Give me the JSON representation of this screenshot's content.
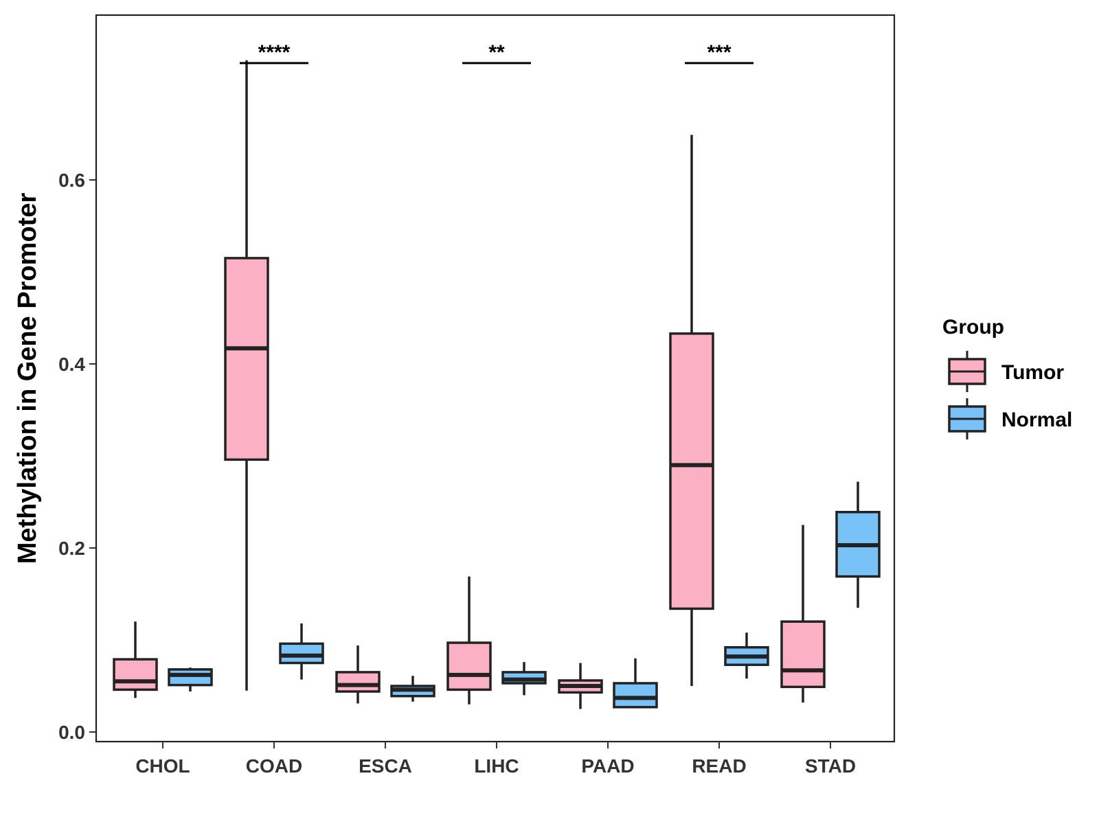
{
  "chart_data": {
    "type": "boxplot",
    "title": "",
    "xlabel": "",
    "ylabel": "Methylation in Gene Promoter",
    "ylim": [
      -0.01,
      0.785
    ],
    "yticks": [
      0.0,
      0.2,
      0.4,
      0.6
    ],
    "ytick_labels": [
      "0.0",
      "0.2",
      "0.4",
      "0.6"
    ],
    "grid": false,
    "categories": [
      "CHOL",
      "COAD",
      "ESCA",
      "LIHC",
      "PAAD",
      "READ",
      "STAD"
    ],
    "legend": {
      "title": "Group",
      "position": "right",
      "items": [
        {
          "name": "Tumor",
          "color": "#FBB0C3"
        },
        {
          "name": "Normal",
          "color": "#78C2F7"
        }
      ]
    },
    "series": [
      {
        "name": "Tumor",
        "color": "#FBB0C3",
        "boxes": [
          {
            "category": "CHOL",
            "min": 0.037,
            "q1": 0.046,
            "median": 0.055,
            "q3": 0.079,
            "max": 0.12
          },
          {
            "category": "COAD",
            "min": 0.045,
            "q1": 0.296,
            "median": 0.417,
            "q3": 0.515,
            "max": 0.73
          },
          {
            "category": "ESCA",
            "min": 0.031,
            "q1": 0.044,
            "median": 0.051,
            "q3": 0.065,
            "max": 0.094
          },
          {
            "category": "LIHC",
            "min": 0.03,
            "q1": 0.046,
            "median": 0.062,
            "q3": 0.097,
            "max": 0.169
          },
          {
            "category": "PAAD",
            "min": 0.025,
            "q1": 0.043,
            "median": 0.05,
            "q3": 0.056,
            "max": 0.075
          },
          {
            "category": "READ",
            "min": 0.05,
            "q1": 0.134,
            "median": 0.29,
            "q3": 0.433,
            "max": 0.649
          },
          {
            "category": "STAD",
            "min": 0.032,
            "q1": 0.049,
            "median": 0.067,
            "q3": 0.12,
            "max": 0.225
          }
        ]
      },
      {
        "name": "Normal",
        "color": "#78C2F7",
        "boxes": [
          {
            "category": "CHOL",
            "min": 0.044,
            "q1": 0.051,
            "median": 0.062,
            "q3": 0.068,
            "max": 0.07
          },
          {
            "category": "COAD",
            "min": 0.057,
            "q1": 0.075,
            "median": 0.083,
            "q3": 0.096,
            "max": 0.118
          },
          {
            "category": "ESCA",
            "min": 0.033,
            "q1": 0.039,
            "median": 0.046,
            "q3": 0.05,
            "max": 0.061
          },
          {
            "category": "LIHC",
            "min": 0.04,
            "q1": 0.053,
            "median": 0.057,
            "q3": 0.065,
            "max": 0.076
          },
          {
            "category": "PAAD",
            "min": 0.026,
            "q1": 0.027,
            "median": 0.037,
            "q3": 0.053,
            "max": 0.08
          },
          {
            "category": "READ",
            "min": 0.058,
            "q1": 0.073,
            "median": 0.082,
            "q3": 0.092,
            "max": 0.108
          },
          {
            "category": "STAD",
            "min": 0.135,
            "q1": 0.169,
            "median": 0.203,
            "q3": 0.239,
            "max": 0.272
          }
        ]
      }
    ],
    "annotations": [
      {
        "category": "COAD",
        "label": "****",
        "y": 0.727
      },
      {
        "category": "LIHC",
        "label": "**",
        "y": 0.727
      },
      {
        "category": "READ",
        "label": "***",
        "y": 0.727
      }
    ]
  }
}
